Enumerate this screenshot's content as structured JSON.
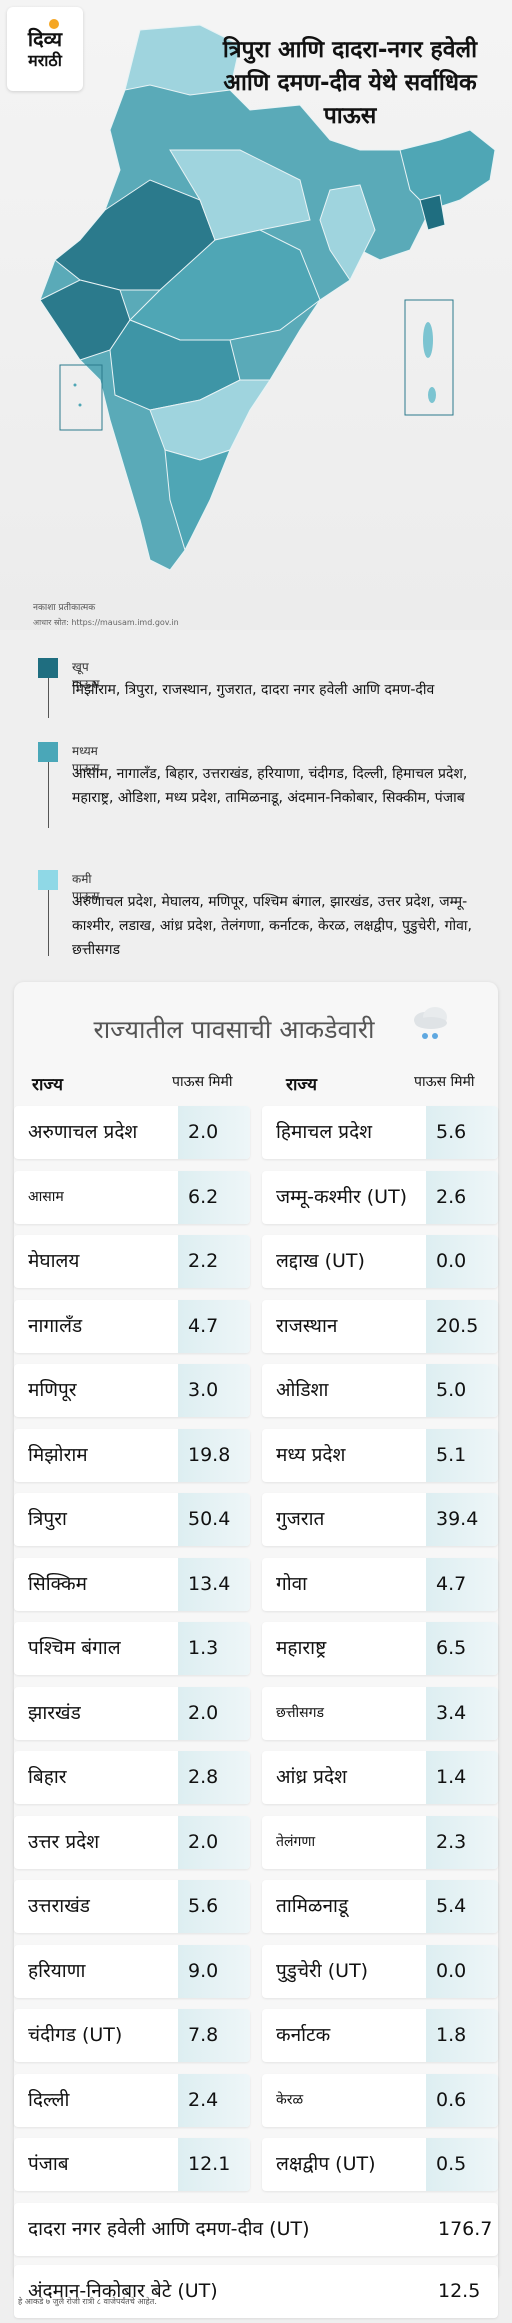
{
  "logo": {
    "line1": "दिव्य",
    "line2": "मराठी"
  },
  "title": "त्रिपुरा आणि दादरा-नगर हवेली आणि दमण-दीव येथे सर्वाधिक पाऊस",
  "map": {
    "note": "नकाशा प्रतीकात्मक",
    "source": "आधार स्रोत: https://mausam.imd.gov.in",
    "colors": {
      "high": "#2b7a8c",
      "medium": "#4fa6b5",
      "low": "#9fd4de"
    }
  },
  "legend": [
    {
      "title": "खूप पाऊस",
      "color": "#1f6e80",
      "text": "मिझोराम, त्रिपुरा, राजस्थान, गुजरात, दादरा नगर हवेली आणि दमण-दीव"
    },
    {
      "title": "मध्यम पाऊस",
      "color": "#4aa7b8",
      "text": "आसाम, नागालँड, बिहार, उत्तराखंड, हरियाणा, चंदीगड, दिल्ली, हिमाचल प्रदेश, महाराष्ट्र, ओडिशा, मध्य प्रदेश, तामिळनाडू, अंदमान-निकोबार, सिक्कीम, पंजाब"
    },
    {
      "title": "कमी पाऊस",
      "color": "#8fd8e6",
      "text": "अरुणाचल प्रदेश, मेघालय, मणिपूर, पश्चिम बंगाल, झारखंड, उत्तर प्रदेश, जम्मू-काश्मीर, लडाख, आंध्र प्रदेश, तेलंगणा, कर्नाटक, केरळ, लक्षद्वीप, पुडुचेरी, गोवा, छत्तीसगड"
    }
  ],
  "stats": {
    "title": "राज्यातील पावसाची आकडेवारी",
    "col_state": "राज्य",
    "col_rain": "पाऊस मिमी",
    "left": [
      {
        "state": "अरुणाचल प्रदेश",
        "value": "2.0"
      },
      {
        "state": "आसाम",
        "value": "6.2",
        "small": true
      },
      {
        "state": "मेघालय",
        "value": "2.2"
      },
      {
        "state": "नागालँड",
        "value": "4.7"
      },
      {
        "state": "मणिपूर",
        "value": "3.0"
      },
      {
        "state": "मिझोराम",
        "value": "19.8"
      },
      {
        "state": "त्रिपुरा",
        "value": "50.4"
      },
      {
        "state": "सिक्किम",
        "value": "13.4"
      },
      {
        "state": "पश्चिम बंगाल",
        "value": "1.3"
      },
      {
        "state": "झारखंड",
        "value": "2.0"
      },
      {
        "state": "बिहार",
        "value": "2.8"
      },
      {
        "state": "उत्तर प्रदेश",
        "value": "2.0"
      },
      {
        "state": "उत्तराखंड",
        "value": "5.6"
      },
      {
        "state": "हरियाणा",
        "value": "9.0"
      },
      {
        "state": "चंदीगड (UT)",
        "value": "7.8"
      },
      {
        "state": "दिल्ली",
        "value": "2.4"
      },
      {
        "state": "पंजाब",
        "value": "12.1"
      }
    ],
    "right": [
      {
        "state": "हिमाचल प्रदेश",
        "value": "5.6"
      },
      {
        "state": "जम्मू-कश्मीर (UT)",
        "value": "2.6"
      },
      {
        "state": "लद्दाख (UT)",
        "value": "0.0"
      },
      {
        "state": "राजस्थान",
        "value": "20.5"
      },
      {
        "state": "ओडिशा",
        "value": "5.0"
      },
      {
        "state": "मध्य प्रदेश",
        "value": "5.1"
      },
      {
        "state": "गुजरात",
        "value": "39.4"
      },
      {
        "state": "गोवा",
        "value": "4.7"
      },
      {
        "state": "महाराष्ट्र",
        "value": "6.5"
      },
      {
        "state": "छत्तीसगड",
        "value": "3.4",
        "small": true
      },
      {
        "state": "आंध्र प्रदेश",
        "value": "1.4"
      },
      {
        "state": "तेलंगणा",
        "value": "2.3",
        "small": true
      },
      {
        "state": "तामिळनाडू",
        "value": "5.4"
      },
      {
        "state": "पुडुचेरी (UT)",
        "value": "0.0"
      },
      {
        "state": "कर्नाटक",
        "value": "1.8"
      },
      {
        "state": "केरळ",
        "value": "0.6",
        "small": true
      },
      {
        "state": "लक्षद्वीप (UT)",
        "value": "0.5"
      }
    ],
    "wide": [
      {
        "state": "दादरा नगर हवेली आणि दमण-दीव (UT)",
        "value": "176.7"
      },
      {
        "state": "अंदमान-निकोबार बेटे (UT)",
        "value": "12.5"
      }
    ]
  },
  "footer": "हे आकडे ७ जुलै रोजी रात्री ८ वाजेपर्यंतचे आहेत."
}
